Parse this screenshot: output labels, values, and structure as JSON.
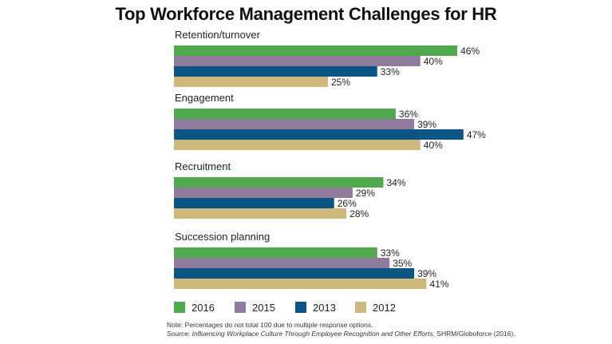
{
  "chart_data": {
    "type": "bar",
    "orientation": "horizontal",
    "title": "Top Workforce Management Challenges for HR",
    "categories": [
      "Retention/turnover",
      "Engagement",
      "Recruitment",
      "Succession planning"
    ],
    "series": [
      {
        "name": "2016",
        "color": "#4fa84b",
        "values": [
          46,
          36,
          34,
          33
        ],
        "labels": [
          "46%",
          "36%",
          "34%",
          "33%"
        ]
      },
      {
        "name": "2015",
        "color": "#8e7b9e",
        "values": [
          40,
          39,
          29,
          35
        ],
        "labels": [
          "40%",
          "39%",
          "29%",
          "35%"
        ]
      },
      {
        "name": "2013",
        "color": "#0a5583",
        "values": [
          33,
          47,
          26,
          39
        ],
        "labels": [
          "33%",
          "47%",
          "26%",
          "39%"
        ]
      },
      {
        "name": "2012",
        "color": "#cfb87c",
        "values": [
          25,
          40,
          28,
          41
        ],
        "labels": [
          "25%",
          "40%",
          "28%",
          "41%"
        ]
      }
    ],
    "unit": "%",
    "legend_position": "bottom",
    "grid": false
  },
  "note": {
    "line1": "Note: Percentages do not total 100 due to multiple response options.",
    "line2_prefix": "Source: ",
    "line2_title": "Influencing Workplace Culture Through Employee Recognition and Other Efforts",
    "line2_suffix": ", SHRM/Globoforce (2016)."
  }
}
